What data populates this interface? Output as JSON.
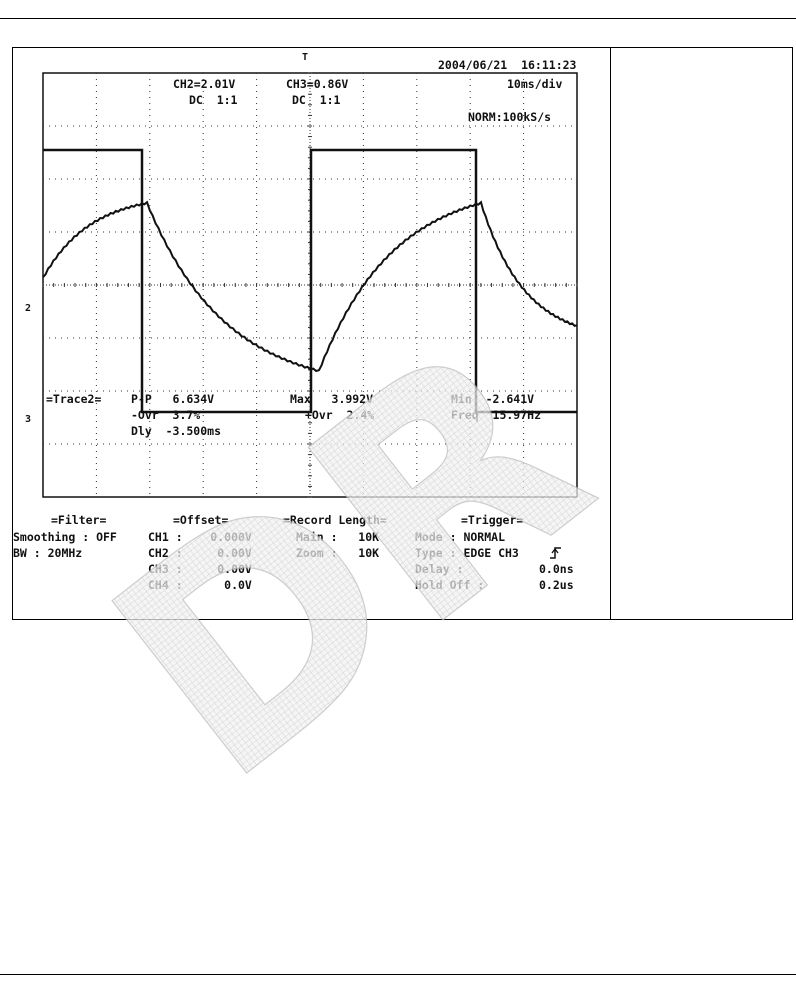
{
  "header_top": {
    "trigger_marker": "T",
    "timestamp": "2004/06/21  16:11:23",
    "timebase": "10ms/div",
    "acq_mode": "NORM:100kS/s"
  },
  "channels": {
    "ch2_scale": "CH2=2.01V",
    "ch2_coupling": "DC  1:1",
    "ch3_scale": "CH3=0.86V",
    "ch3_coupling": "DC  1:1"
  },
  "markers": {
    "ch2_marker": "2",
    "ch3_marker": "3"
  },
  "measurements": {
    "trace": "=Trace2=",
    "pp": "P-P   6.634V",
    "max": "Max   3.992V",
    "min": "Min  -2.641V",
    "ovr_neg": "-Ovr  3.7%",
    "ovr_pos": "+Ovr  2.4%",
    "freq": "Freq  15.97Hz",
    "dly": "Dly  -3.500ms"
  },
  "filter": {
    "title": "=Filter=",
    "smoothing": "Smoothing : OFF",
    "bw": "BW : 20MHz"
  },
  "offset": {
    "title": "=Offset=",
    "ch1": "CH1 :    0.000V",
    "ch2": "CH2 :     0.00V",
    "ch3": "CH3 :     0.00V",
    "ch4": "CH4 :      0.0V"
  },
  "record": {
    "title": "=Record Length=",
    "main": "Main :   10K",
    "zoom": "Zoom :   10K"
  },
  "trigger": {
    "title": "=Trigger=",
    "mode": "Mode : NORMAL",
    "type": "Type : EDGE CH3",
    "delay_label": "Delay :",
    "delay_value": "0.0ns",
    "holdoff_label": "Hold Off :",
    "holdoff_value": "0.2us"
  },
  "watermark_text": "DR",
  "colors": {
    "trace": "#111111",
    "grid": "#333333",
    "watermark": "#d8d8d8"
  }
}
